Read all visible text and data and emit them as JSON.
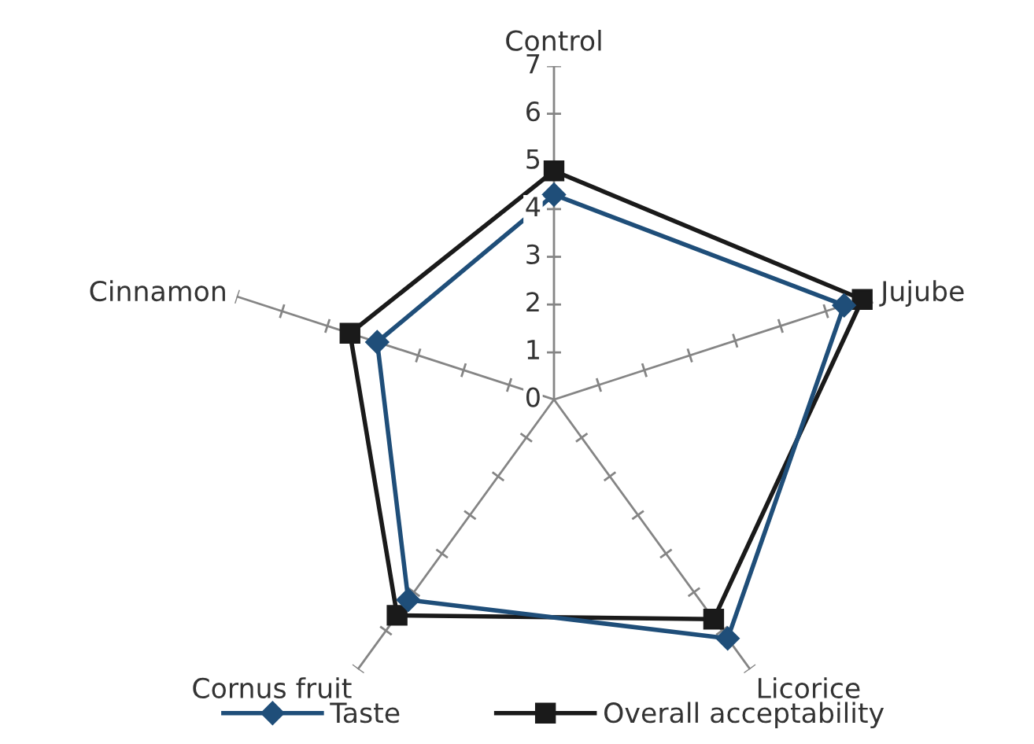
{
  "chart_data": {
    "type": "radar",
    "categories": [
      "Control",
      "Jujube",
      "Licorice",
      "Cornus fruit",
      "Cinnamon"
    ],
    "series": [
      {
        "name": "Taste",
        "color": "#1f4e79",
        "marker": "diamond",
        "values": [
          4.3,
          6.4,
          6.2,
          5.2,
          3.9
        ]
      },
      {
        "name": "Overall acceptability",
        "color": "#1a1a1a",
        "marker": "square",
        "values": [
          4.8,
          6.8,
          5.7,
          5.6,
          4.5
        ]
      }
    ],
    "ylim": [
      0,
      7
    ],
    "yticks": [
      0,
      1,
      2,
      3,
      4,
      5,
      6,
      7
    ],
    "legend": "bottom"
  }
}
